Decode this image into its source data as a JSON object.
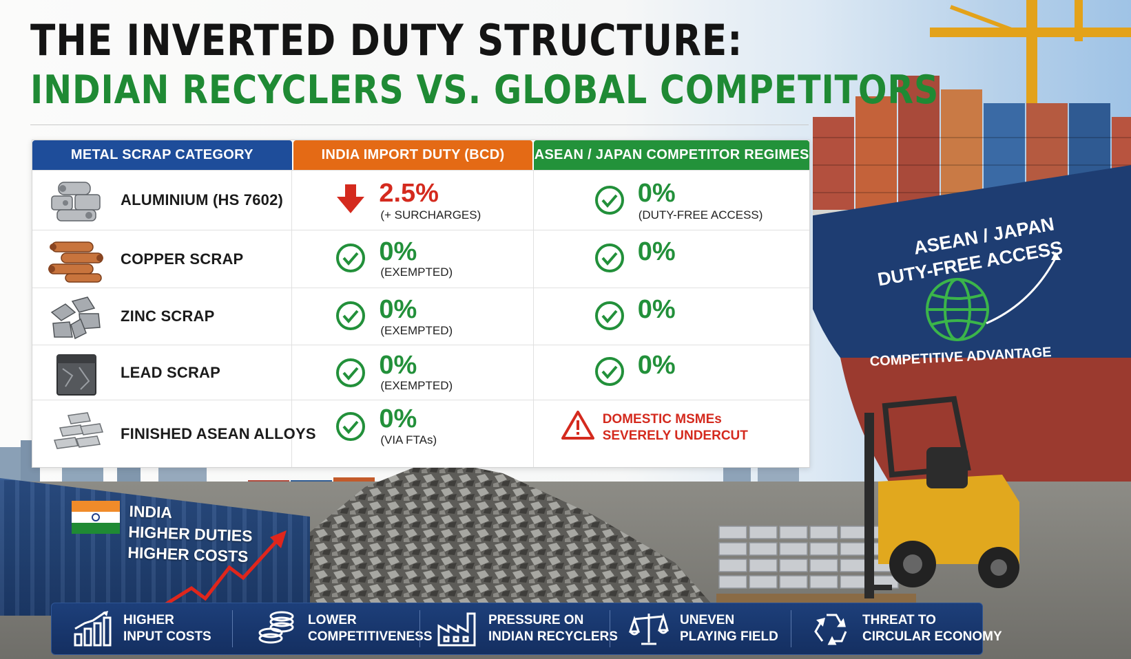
{
  "title": {
    "line1": "THE INVERTED DUTY STRUCTURE:",
    "line2": "INDIAN RECYCLERS VS. GLOBAL COMPETITORS"
  },
  "table": {
    "headers": {
      "category": "METAL SCRAP CATEGORY",
      "india": "INDIA IMPORT DUTY (BCD)",
      "competitor": "ASEAN / JAPAN COMPETITOR REGIMES"
    },
    "rows": [
      {
        "category": "ALUMINIUM (HS 7602)",
        "icon": "aluminium-scrap-icon",
        "india_value": "2.5%",
        "india_note": "(+ SURCHARGES)",
        "india_icon": "red-down-arrow-icon",
        "competitor_value": "0%",
        "competitor_note": "(DUTY-FREE ACCESS)",
        "competitor_icon": "green-check-icon"
      },
      {
        "category": "COPPER SCRAP",
        "icon": "copper-scrap-icon",
        "india_value": "0%",
        "india_note": "(EXEMPTED)",
        "india_icon": "green-check-icon",
        "competitor_value": "0%",
        "competitor_note": "",
        "competitor_icon": "green-check-icon"
      },
      {
        "category": "ZINC SCRAP",
        "icon": "zinc-scrap-icon",
        "india_value": "0%",
        "india_note": "(EXEMPTED)",
        "india_icon": "green-check-icon",
        "competitor_value": "0%",
        "competitor_note": "",
        "competitor_icon": "green-check-icon"
      },
      {
        "category": "LEAD SCRAP",
        "icon": "lead-scrap-icon",
        "india_value": "0%",
        "india_note": "(EXEMPTED)",
        "india_icon": "green-check-icon",
        "competitor_value": "0%",
        "competitor_note": "",
        "competitor_icon": "green-check-icon"
      },
      {
        "category": "FINISHED ASEAN ALLOYS",
        "icon": "alloy-ingots-icon",
        "india_value": "0%",
        "india_note": "(VIA FTAs)",
        "india_icon": "green-check-icon",
        "competitor_warning_line1": "DOMESTIC MSMEs",
        "competitor_warning_line2": "SEVERELY UNDERCUT",
        "competitor_icon": "warning-triangle-icon"
      }
    ]
  },
  "ship": {
    "line1": "ASEAN / JAPAN",
    "line2": "DUTY-FREE ACCESS",
    "caption": "COMPETITIVE ADVANTAGE",
    "icon": "globe-icon"
  },
  "india_container": {
    "line1": "INDIA",
    "line2": "HIGHER DUTIES",
    "line3": "HIGHER COSTS"
  },
  "banner": [
    {
      "line1": "HIGHER",
      "line2": "INPUT COSTS",
      "icon": "bar-chart-icon"
    },
    {
      "line1": "LOWER",
      "line2": "COMPETITIVENESS",
      "icon": "coin-stack-icon"
    },
    {
      "line1": "PRESSURE ON",
      "line2": "INDIAN RECYCLERS",
      "icon": "factory-icon"
    },
    {
      "line1": "UNEVEN",
      "line2": "PLAYING FIELD",
      "icon": "balance-scale-icon"
    },
    {
      "line1": "THREAT TO",
      "line2": "CIRCULAR ECONOMY",
      "icon": "recycle-icon"
    }
  ],
  "colors": {
    "title_dark": "#141414",
    "title_green": "#1f8a34",
    "header_blue": "#1e4d9a",
    "header_orange": "#e46a15",
    "header_green": "#23923a",
    "positive_green": "#22903a",
    "alert_red": "#d42a1e",
    "banner_navy": "#1d3f7a"
  }
}
